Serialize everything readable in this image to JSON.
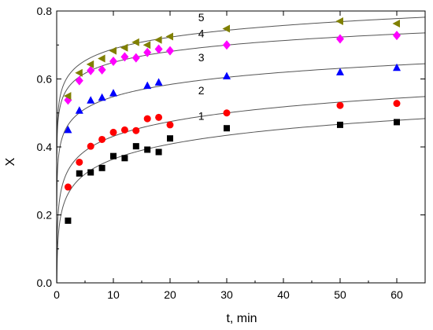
{
  "chart_data": {
    "type": "scatter",
    "xlabel": "t, min",
    "ylabel": "X",
    "xlim": [
      0,
      65
    ],
    "ylim": [
      0,
      0.8
    ],
    "x_ticks": [
      0,
      10,
      20,
      30,
      40,
      50,
      60
    ],
    "y_ticks": [
      0.0,
      0.2,
      0.4,
      0.6,
      0.8
    ],
    "x_tick_labels": [
      "0",
      "10",
      "20",
      "30",
      "40",
      "50",
      "60"
    ],
    "y_tick_labels": [
      "0.0",
      "0.2",
      "0.4",
      "0.6",
      "0.8"
    ],
    "grid": false,
    "series": [
      {
        "name": "1",
        "marker": "square",
        "color": "#000000",
        "x": [
          2,
          4,
          6,
          8,
          10,
          12,
          14,
          16,
          18,
          20,
          30,
          50,
          60
        ],
        "y": [
          0.183,
          0.322,
          0.325,
          0.338,
          0.373,
          0.367,
          0.402,
          0.392,
          0.385,
          0.425,
          0.455,
          0.465,
          0.473
        ],
        "fit": {
          "a": 0.2175,
          "b": 0.0637
        },
        "label_pos": [
          25.5,
          0.48
        ]
      },
      {
        "name": "2",
        "marker": "circle",
        "color": "#ff0000",
        "x": [
          2,
          4,
          6,
          8,
          10,
          12,
          14,
          16,
          18,
          20,
          30,
          50,
          60
        ],
        "y": [
          0.282,
          0.355,
          0.402,
          0.422,
          0.443,
          0.45,
          0.448,
          0.483,
          0.487,
          0.465,
          0.5,
          0.522,
          0.528
        ],
        "fit": {
          "a": 0.2874,
          "b": 0.0625
        },
        "label_pos": [
          25.5,
          0.555
        ]
      },
      {
        "name": "3",
        "marker": "triangle-up",
        "color": "#0000ff",
        "x": [
          2,
          4,
          6,
          8,
          10,
          16,
          18,
          30,
          50,
          60
        ],
        "y": [
          0.45,
          0.507,
          0.537,
          0.545,
          0.558,
          0.58,
          0.59,
          0.608,
          0.62,
          0.633
        ],
        "fit": {
          "a": 0.4286,
          "b": 0.0518
        },
        "label_pos": [
          25.5,
          0.652
        ]
      },
      {
        "name": "4",
        "marker": "diamond",
        "color": "#ff00ff",
        "x": [
          2,
          4,
          6,
          8,
          10,
          12,
          14,
          16,
          18,
          20,
          30,
          50,
          60
        ],
        "y": [
          0.538,
          0.595,
          0.625,
          0.627,
          0.652,
          0.665,
          0.662,
          0.678,
          0.688,
          0.683,
          0.7,
          0.718,
          0.728
        ],
        "fit": {
          "a": 0.5419,
          "b": 0.0464
        },
        "label_pos": [
          25.5,
          0.723
        ]
      },
      {
        "name": "5",
        "marker": "triangle-left",
        "color": "#808000",
        "x": [
          2,
          4,
          6,
          8,
          10,
          12,
          14,
          16,
          18,
          20,
          30,
          50,
          60
        ],
        "y": [
          0.55,
          0.618,
          0.643,
          0.66,
          0.683,
          0.692,
          0.708,
          0.7,
          0.715,
          0.725,
          0.748,
          0.77,
          0.763
        ],
        "fit": {
          "a": 0.5734,
          "b": 0.0499
        },
        "label_pos": [
          25.5,
          0.77
        ]
      }
    ]
  }
}
